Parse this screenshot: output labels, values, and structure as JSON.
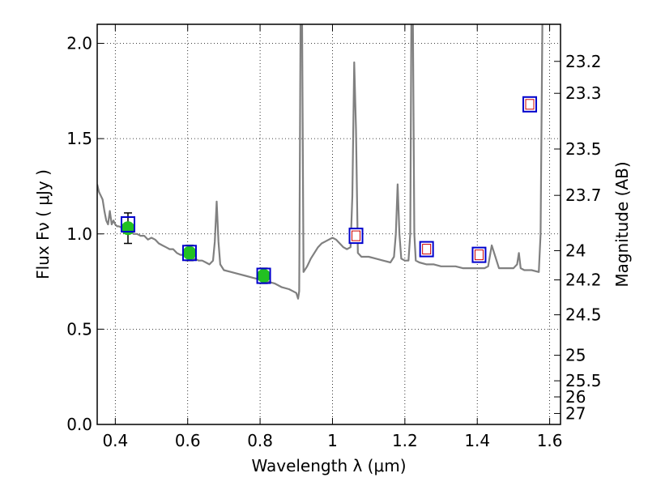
{
  "chart_data": {
    "type": "line",
    "xlabel": "Wavelength  λ (μm)",
    "ylabel": "Flux  Fν  ( μJy )",
    "y2label": "Magnitude (AB)",
    "xlim": [
      0.35,
      1.63
    ],
    "ylim": [
      0.0,
      2.1
    ],
    "grid": true,
    "x_ticks": [
      {
        "value": 0.4,
        "label": "0.4"
      },
      {
        "value": 0.6,
        "label": "0.6"
      },
      {
        "value": 0.8,
        "label": "0.8"
      },
      {
        "value": 1.0,
        "label": "1"
      },
      {
        "value": 1.2,
        "label": "1.2"
      },
      {
        "value": 1.4,
        "label": "1.4"
      },
      {
        "value": 1.6,
        "label": "1.6"
      }
    ],
    "y_ticks": [
      {
        "value": 0.0,
        "label": "0.0"
      },
      {
        "value": 0.5,
        "label": "0.5"
      },
      {
        "value": 1.0,
        "label": "1.0"
      },
      {
        "value": 1.5,
        "label": "1.5"
      },
      {
        "value": 2.0,
        "label": "2.0"
      }
    ],
    "mag_ticks": [
      "23.2",
      "23.3",
      "23.5",
      "23.7",
      "24",
      "24.2",
      "24.5",
      "25",
      "25.5",
      "26",
      "27"
    ],
    "series": [
      {
        "kind": "line",
        "color": "#808080",
        "x": [
          0.35,
          0.355,
          0.36,
          0.365,
          0.37,
          0.375,
          0.38,
          0.385,
          0.39,
          0.395,
          0.4,
          0.405,
          0.41,
          0.42,
          0.43,
          0.44,
          0.45,
          0.46,
          0.47,
          0.48,
          0.49,
          0.5,
          0.51,
          0.52,
          0.53,
          0.54,
          0.55,
          0.56,
          0.57,
          0.58,
          0.59,
          0.6,
          0.61,
          0.62,
          0.63,
          0.64,
          0.65,
          0.66,
          0.67,
          0.675,
          0.68,
          0.685,
          0.69,
          0.7,
          0.72,
          0.74,
          0.76,
          0.78,
          0.8,
          0.82,
          0.84,
          0.86,
          0.88,
          0.89,
          0.9,
          0.905,
          0.908,
          0.912,
          0.916,
          0.92,
          0.93,
          0.94,
          0.95,
          0.96,
          0.97,
          0.98,
          0.99,
          1.0,
          1.01,
          1.02,
          1.03,
          1.04,
          1.05,
          1.055,
          1.06,
          1.065,
          1.07,
          1.08,
          1.1,
          1.12,
          1.14,
          1.16,
          1.17,
          1.175,
          1.18,
          1.185,
          1.19,
          1.2,
          1.21,
          1.215,
          1.218,
          1.222,
          1.226,
          1.23,
          1.24,
          1.26,
          1.28,
          1.3,
          1.32,
          1.34,
          1.36,
          1.38,
          1.4,
          1.42,
          1.43,
          1.44,
          1.46,
          1.48,
          1.5,
          1.51,
          1.515,
          1.52,
          1.53,
          1.55,
          1.57,
          1.575,
          1.58,
          1.585,
          1.59,
          1.6,
          1.62,
          1.63
        ],
        "y": [
          1.26,
          1.22,
          1.2,
          1.18,
          1.12,
          1.07,
          1.05,
          1.12,
          1.05,
          1.07,
          1.05,
          1.04,
          1.04,
          1.03,
          1.04,
          1.02,
          1.0,
          1.0,
          0.99,
          0.99,
          0.97,
          0.98,
          0.97,
          0.95,
          0.94,
          0.93,
          0.92,
          0.92,
          0.9,
          0.89,
          0.89,
          0.88,
          0.87,
          0.87,
          0.86,
          0.86,
          0.85,
          0.84,
          0.86,
          0.96,
          1.17,
          0.96,
          0.84,
          0.81,
          0.8,
          0.79,
          0.78,
          0.77,
          0.76,
          0.75,
          0.74,
          0.72,
          0.71,
          0.7,
          0.69,
          0.66,
          0.7,
          2.15,
          2.15,
          0.8,
          0.83,
          0.87,
          0.9,
          0.93,
          0.95,
          0.96,
          0.97,
          0.98,
          0.97,
          0.95,
          0.93,
          0.92,
          0.93,
          1.2,
          1.9,
          1.55,
          0.9,
          0.88,
          0.88,
          0.87,
          0.86,
          0.85,
          0.88,
          1.0,
          1.26,
          1.0,
          0.87,
          0.86,
          0.86,
          1.0,
          2.15,
          2.15,
          1.0,
          0.86,
          0.85,
          0.84,
          0.84,
          0.83,
          0.83,
          0.83,
          0.82,
          0.82,
          0.82,
          0.82,
          0.83,
          0.94,
          0.82,
          0.82,
          0.82,
          0.84,
          0.9,
          0.82,
          0.81,
          0.81,
          0.8,
          1.0,
          2.15,
          2.15,
          2.15,
          2.15,
          2.15,
          2.15
        ]
      },
      {
        "kind": "errorbar",
        "color": "#22c022",
        "x": [
          0.435,
          0.605,
          0.81
        ],
        "y": [
          1.03,
          0.9,
          0.78
        ],
        "yerr": [
          0.08,
          0.04,
          0.04
        ]
      },
      {
        "kind": "model_squares",
        "edge_color": "#0000cc",
        "x": [
          0.435,
          0.605,
          0.81
        ],
        "y": [
          1.05,
          0.9,
          0.78
        ]
      },
      {
        "kind": "predicted_squares",
        "edge_color": "#0000cc",
        "inner_color": "#cc0000",
        "x": [
          1.065,
          1.26,
          1.405,
          1.545
        ],
        "y": [
          0.99,
          0.92,
          0.89,
          1.68
        ]
      }
    ]
  }
}
